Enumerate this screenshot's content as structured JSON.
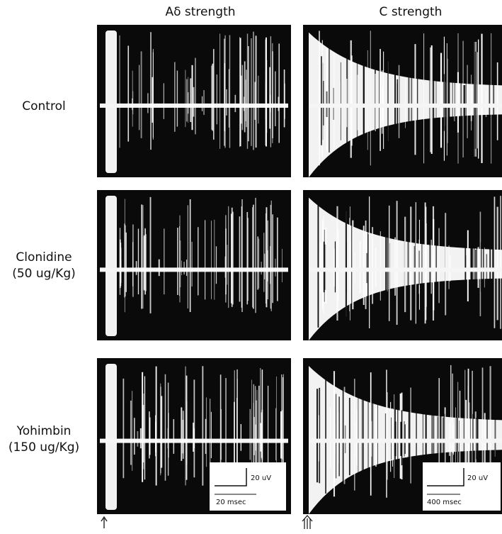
{
  "columns": [
    "Aδ strength",
    "C strength"
  ],
  "rows": [
    {
      "lines": [
        "Control"
      ]
    },
    {
      "lines": [
        "Clonidine",
        "(50 ug/Kg)"
      ]
    },
    {
      "lines": [
        "Yohimbin",
        "(150 ug/Kg)"
      ]
    }
  ],
  "scale_bars": [
    {
      "amplitude": "20 uV",
      "time": "20 msec"
    },
    {
      "amplitude": "20 uV",
      "time": "400 msec"
    }
  ]
}
